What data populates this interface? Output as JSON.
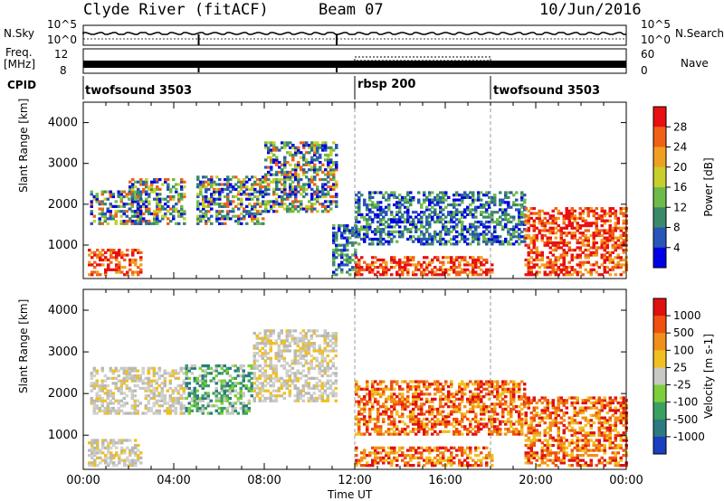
{
  "header": {
    "title": "Clyde River (fitACF)",
    "beam": "Beam 07",
    "date": "10/Jun/2016"
  },
  "strip": {
    "nsky_label": "N.Sky",
    "nsky_top": "10^5",
    "nsky_bottom": "10^0",
    "nsearch_label": "N.Search",
    "nsearch_top": "10^5",
    "nsearch_bottom": "10^0",
    "freq_label_1": "Freq.",
    "freq_label_2": "[MHz]",
    "freq_top": "12",
    "freq_bottom": "8",
    "nave_label": "Nave",
    "nave_top": "60",
    "nave_bottom": "0",
    "cpid_label": "CPID",
    "cpid_segments": [
      "twofsound 3503",
      "rbsp 200",
      "twofsound 3503"
    ]
  },
  "chart_data": [
    {
      "type": "heatmap",
      "title": "",
      "ylabel": "Slant Range [km]",
      "xlabel": "",
      "ylim": [
        180,
        4500
      ],
      "xlim": [
        "00:00",
        "24:00"
      ],
      "y_ticks": [
        "1000",
        "2000",
        "3000",
        "4000"
      ],
      "x_ticks": [
        "00:00",
        "04:00",
        "08:00",
        "12:00",
        "16:00",
        "20:00",
        "00:00"
      ],
      "colorbar": {
        "label": "Power [dB]",
        "ticks": [
          "28",
          "24",
          "20",
          "16",
          "12",
          "8",
          "4"
        ],
        "colors": [
          "#0000e6",
          "#2a55b8",
          "#3a8a6a",
          "#6fbb4a",
          "#c8cf2a",
          "#f0a020",
          "#f06018",
          "#e81010"
        ]
      },
      "regions": [
        {
          "t0": 0.2,
          "t1": 2.5,
          "r0": 250,
          "r1": 900,
          "level": "high"
        },
        {
          "t0": 0.3,
          "t1": 2.5,
          "r0": 1500,
          "r1": 2300,
          "level": "mid"
        },
        {
          "t0": 2.0,
          "t1": 4.5,
          "r0": 1500,
          "r1": 2600,
          "level": "mid"
        },
        {
          "t0": 5.0,
          "t1": 8.0,
          "r0": 1500,
          "r1": 2700,
          "level": "mid"
        },
        {
          "t0": 8.0,
          "t1": 11.2,
          "r0": 1800,
          "r1": 3500,
          "level": "mid"
        },
        {
          "t0": 11.0,
          "t1": 12.0,
          "r0": 250,
          "r1": 1500,
          "level": "low"
        },
        {
          "t0": 12.0,
          "t1": 18.0,
          "r0": 250,
          "r1": 700,
          "level": "high"
        },
        {
          "t0": 12.0,
          "t1": 19.5,
          "r0": 1000,
          "r1": 2300,
          "level": "low"
        },
        {
          "t0": 19.5,
          "t1": 24.0,
          "r0": 250,
          "r1": 1900,
          "level": "high"
        }
      ]
    },
    {
      "type": "heatmap",
      "title": "",
      "ylabel": "Slant Range [km]",
      "xlabel": "Time UT",
      "ylim": [
        180,
        4500
      ],
      "xlim": [
        "00:00",
        "24:00"
      ],
      "y_ticks": [
        "1000",
        "2000",
        "3000",
        "4000"
      ],
      "x_ticks": [
        "00:00",
        "04:00",
        "08:00",
        "12:00",
        "16:00",
        "20:00",
        "00:00"
      ],
      "colorbar": {
        "label": "Velocity [m s-1]",
        "ticks": [
          "1000",
          "500",
          "100",
          "25",
          "-25",
          "-100",
          "-500",
          "-1000"
        ],
        "colors": [
          "#1a3fc0",
          "#2c7a80",
          "#3aa060",
          "#7ccf3a",
          "#c8c8c4",
          "#f0c020",
          "#f09018",
          "#f05010",
          "#e01010"
        ]
      },
      "regions": [
        {
          "t0": 0.2,
          "t1": 2.5,
          "r0": 250,
          "r1": 900,
          "level": "gray"
        },
        {
          "t0": 0.3,
          "t1": 4.5,
          "r0": 1500,
          "r1": 2600,
          "level": "gray"
        },
        {
          "t0": 4.5,
          "t1": 7.5,
          "r0": 1500,
          "r1": 2700,
          "level": "green"
        },
        {
          "t0": 7.5,
          "t1": 11.2,
          "r0": 1800,
          "r1": 3500,
          "level": "gray"
        },
        {
          "t0": 12.0,
          "t1": 18.0,
          "r0": 250,
          "r1": 700,
          "level": "orange"
        },
        {
          "t0": 12.0,
          "t1": 19.5,
          "r0": 1000,
          "r1": 2300,
          "level": "orange"
        },
        {
          "t0": 19.5,
          "t1": 24.0,
          "r0": 250,
          "r1": 1900,
          "level": "orange"
        }
      ]
    }
  ]
}
